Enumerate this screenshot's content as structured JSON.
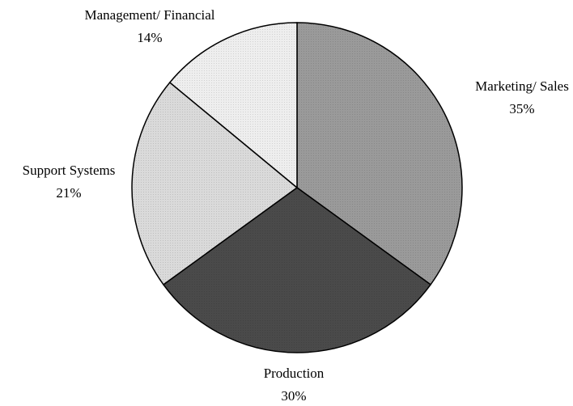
{
  "chart_data": {
    "type": "pie",
    "categories": [
      "Marketing/ Sales",
      "Production",
      "Support Systems",
      "Management/ Financial"
    ],
    "values": [
      35,
      30,
      21,
      14
    ],
    "value_labels": [
      "35%",
      "30%",
      "21%",
      "14%"
    ],
    "colors": [
      "#9a9a9a",
      "#4a4a4a",
      "#dadada",
      "#eeeeee"
    ]
  }
}
